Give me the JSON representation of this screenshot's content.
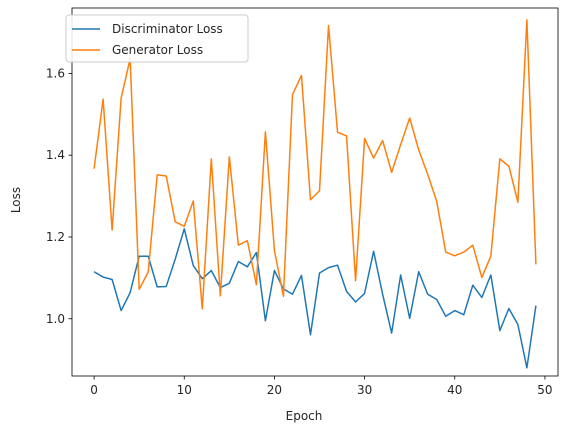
{
  "chart_data": {
    "type": "line",
    "title": "",
    "xlabel": "Epoch",
    "ylabel": "Loss",
    "xlim": [
      -2.45,
      51.45
    ],
    "ylim": [
      0.86,
      1.76
    ],
    "x_ticks": [
      0,
      10,
      20,
      30,
      40,
      50
    ],
    "x_tick_labels": [
      "0",
      "10",
      "20",
      "30",
      "40",
      "50"
    ],
    "y_ticks": [
      1.0,
      1.2,
      1.4,
      1.6
    ],
    "y_tick_labels": [
      "1.0",
      "1.2",
      "1.4",
      "1.6"
    ],
    "grid": false,
    "legend_position": "top-left",
    "x": [
      0,
      1,
      2,
      3,
      4,
      5,
      6,
      7,
      8,
      9,
      10,
      11,
      12,
      13,
      14,
      15,
      16,
      17,
      18,
      19,
      20,
      21,
      22,
      23,
      24,
      25,
      26,
      27,
      28,
      29,
      30,
      31,
      32,
      33,
      34,
      35,
      36,
      37,
      38,
      39,
      40,
      41,
      42,
      43,
      44,
      45,
      46,
      47,
      48,
      49
    ],
    "series": [
      {
        "name": "Discriminator Loss",
        "color": "#1f77b4",
        "values": [
          1.115,
          1.102,
          1.096,
          1.02,
          1.064,
          1.153,
          1.153,
          1.078,
          1.079,
          1.146,
          1.22,
          1.13,
          1.098,
          1.118,
          1.076,
          1.087,
          1.14,
          1.127,
          1.162,
          0.995,
          1.118,
          1.073,
          1.06,
          1.106,
          0.961,
          1.112,
          1.125,
          1.131,
          1.067,
          1.041,
          1.062,
          1.165,
          1.06,
          0.965,
          1.107,
          1.001,
          1.115,
          1.06,
          1.047,
          1.006,
          1.02,
          1.01,
          1.082,
          1.052,
          1.107,
          0.971,
          1.025,
          0.986,
          0.88,
          1.032
        ]
      },
      {
        "name": "Generator Loss",
        "color": "#ff7f0e",
        "values": [
          1.367,
          1.537,
          1.217,
          1.54,
          1.636,
          1.072,
          1.114,
          1.352,
          1.349,
          1.237,
          1.226,
          1.288,
          1.024,
          1.391,
          1.056,
          1.396,
          1.18,
          1.191,
          1.083,
          1.457,
          1.167,
          1.055,
          1.548,
          1.595,
          1.291,
          1.313,
          1.717,
          1.456,
          1.447,
          1.093,
          1.441,
          1.393,
          1.436,
          1.358,
          1.426,
          1.491,
          1.413,
          1.353,
          1.287,
          1.163,
          1.154,
          1.163,
          1.18,
          1.101,
          1.153,
          1.391,
          1.373,
          1.285,
          1.731,
          1.133
        ]
      }
    ]
  }
}
